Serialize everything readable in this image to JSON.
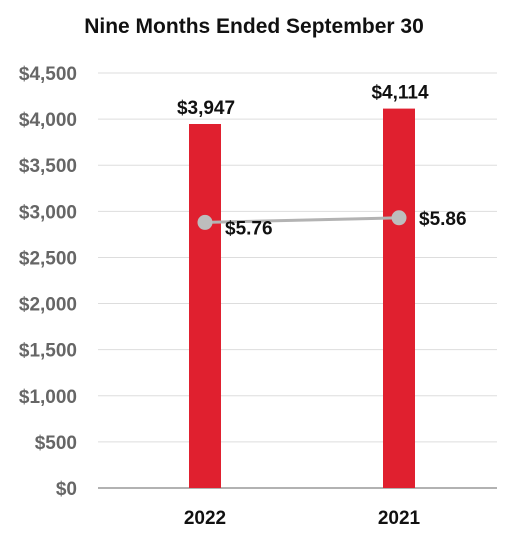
{
  "chart_data": {
    "type": "bar",
    "title": "Nine Months Ended September 30",
    "categories": [
      "2022",
      "2021"
    ],
    "series": [
      {
        "kind": "bar",
        "values": [
          3947,
          4114
        ],
        "labels": [
          "$3,947",
          "$4,114"
        ],
        "color": "#e0202f"
      },
      {
        "kind": "line",
        "values": [
          5.76,
          5.86
        ],
        "labels": [
          "$5.76",
          "$5.86"
        ],
        "color": "#b3b3b3",
        "marker_color": "#bdbdbd"
      }
    ],
    "yticks": [
      0,
      500,
      1000,
      1500,
      2000,
      2500,
      3000,
      3500,
      4000,
      4500
    ],
    "ytick_labels": [
      "$0",
      "$500",
      "$1,000",
      "$1,500",
      "$2,000",
      "$2,500",
      "$3,000",
      "$3,500",
      "$4,000",
      "$4,500"
    ],
    "ylim": [
      0,
      4500
    ],
    "grid": true,
    "grid_color": "#dddddd",
    "axis_color": "#999999"
  }
}
